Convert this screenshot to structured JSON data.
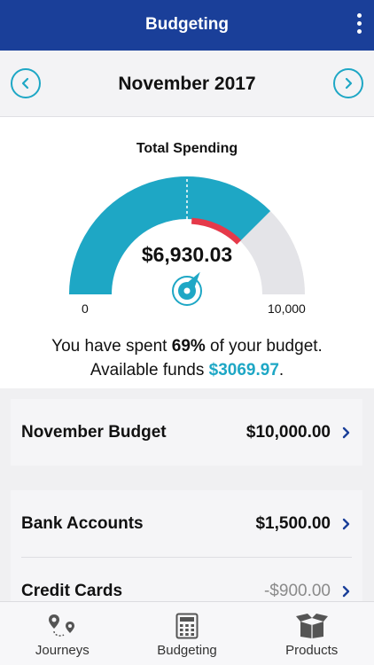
{
  "header": {
    "title": "Budgeting"
  },
  "month_nav": {
    "label": "November 2017"
  },
  "gauge": {
    "title": "Total Spending",
    "amount": "$6,930.03",
    "min_label": "0",
    "max_label": "10,000",
    "spent_fraction": 0.693,
    "budget_marker_fraction": 0.75,
    "colors": {
      "spent": "#1ea7c5",
      "remaining": "#e4e4e8",
      "marker": "#e5394a"
    }
  },
  "summary": {
    "line1_prefix": "You have spent ",
    "percent": "69%",
    "line1_suffix": " of your budget.",
    "line2_prefix": "Available funds ",
    "funds": "$3069.97",
    "line2_suffix": "."
  },
  "budget_card": {
    "label": "November Budget",
    "value": "$10,000.00"
  },
  "accounts": [
    {
      "label": "Bank Accounts",
      "value": "$1,500.00",
      "negative": false
    },
    {
      "label": "Credit Cards",
      "value": "-$900.00",
      "negative": true
    }
  ],
  "tabs": [
    {
      "label": "Journeys",
      "icon": "map-pins-icon"
    },
    {
      "label": "Budgeting",
      "icon": "calculator-icon"
    },
    {
      "label": "Products",
      "icon": "box-icon"
    }
  ]
}
